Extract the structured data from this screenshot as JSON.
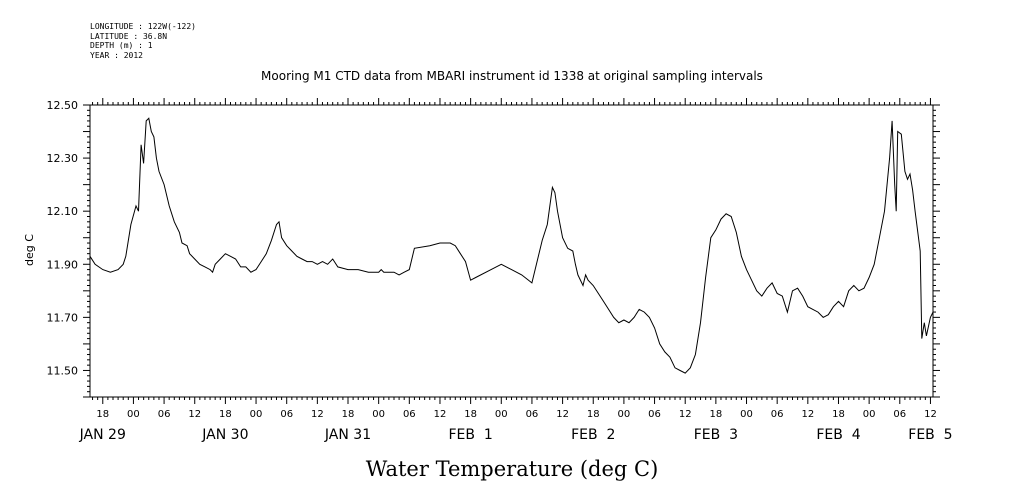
{
  "header": {
    "longitude": "LONGITUDE : 122W(-122)",
    "latitude": "LATITUDE : 36.8N",
    "depth": "DEPTH (m) : 1",
    "year": "YEAR : 2012"
  },
  "chart_data": {
    "type": "line",
    "title": "Mooring M1 CTD data from MBARI instrument id 1338 at original sampling intervals",
    "xlabel": "Water Temperature (deg C)",
    "ylabel": "deg C",
    "ylim": [
      11.4,
      12.5
    ],
    "y_ticks": [
      "11.50",
      "11.70",
      "11.90",
      "12.10",
      "12.30",
      "12.50"
    ],
    "x_unit": "hours since JAN 29 00:00 (2012)",
    "xlim": [
      -8.5,
      156.5
    ],
    "x_hour_ticks": [
      {
        "h": -6,
        "label": "18"
      },
      {
        "h": 0,
        "label": "00"
      },
      {
        "h": 6,
        "label": "06"
      },
      {
        "h": 12,
        "label": "12"
      },
      {
        "h": 18,
        "label": "18"
      },
      {
        "h": 24,
        "label": "00"
      },
      {
        "h": 30,
        "label": "06"
      },
      {
        "h": 36,
        "label": "12"
      },
      {
        "h": 42,
        "label": "18"
      },
      {
        "h": 48,
        "label": "00"
      },
      {
        "h": 54,
        "label": "06"
      },
      {
        "h": 60,
        "label": "12"
      },
      {
        "h": 66,
        "label": "18"
      },
      {
        "h": 72,
        "label": "00"
      },
      {
        "h": 78,
        "label": "06"
      },
      {
        "h": 84,
        "label": "12"
      },
      {
        "h": 90,
        "label": "18"
      },
      {
        "h": 96,
        "label": "00"
      },
      {
        "h": 102,
        "label": "06"
      },
      {
        "h": 108,
        "label": "12"
      },
      {
        "h": 114,
        "label": "18"
      },
      {
        "h": 120,
        "label": "00"
      },
      {
        "h": 126,
        "label": "06"
      },
      {
        "h": 132,
        "label": "12"
      },
      {
        "h": 138,
        "label": "18"
      },
      {
        "h": 144,
        "label": "00"
      },
      {
        "h": 150,
        "label": "06"
      },
      {
        "h": 156,
        "label": "12"
      }
    ],
    "x_day_labels": [
      {
        "h": -6,
        "label": "JAN 29"
      },
      {
        "h": 18,
        "label": "JAN 30"
      },
      {
        "h": 42,
        "label": "JAN 31"
      },
      {
        "h": 66,
        "label": "FEB  1"
      },
      {
        "h": 90,
        "label": "FEB  2"
      },
      {
        "h": 114,
        "label": "FEB  3"
      },
      {
        "h": 138,
        "label": "FEB  4"
      },
      {
        "h": 156,
        "label": "FEB  5"
      }
    ],
    "grid": false,
    "series": [
      {
        "color": "#000000",
        "points": [
          [
            -8.5,
            11.93
          ],
          [
            -7.5,
            11.9
          ],
          [
            -6,
            11.88
          ],
          [
            -4.5,
            11.87
          ],
          [
            -3,
            11.88
          ],
          [
            -2,
            11.9
          ],
          [
            -1.5,
            11.93
          ],
          [
            -0.5,
            12.05
          ],
          [
            0.5,
            12.12
          ],
          [
            1,
            12.1
          ],
          [
            1.5,
            12.35
          ],
          [
            2,
            12.28
          ],
          [
            2.5,
            12.44
          ],
          [
            3,
            12.45
          ],
          [
            3.5,
            12.4
          ],
          [
            4,
            12.38
          ],
          [
            4.5,
            12.3
          ],
          [
            5,
            12.25
          ],
          [
            6,
            12.2
          ],
          [
            7,
            12.12
          ],
          [
            8,
            12.06
          ],
          [
            9,
            12.02
          ],
          [
            9.5,
            11.98
          ],
          [
            10.5,
            11.97
          ],
          [
            11,
            11.94
          ],
          [
            12,
            11.92
          ],
          [
            13,
            11.9
          ],
          [
            14,
            11.89
          ],
          [
            15,
            11.88
          ],
          [
            15.5,
            11.87
          ],
          [
            16,
            11.9
          ],
          [
            17,
            11.92
          ],
          [
            18,
            11.94
          ],
          [
            19,
            11.93
          ],
          [
            20,
            11.92
          ],
          [
            21,
            11.89
          ],
          [
            22,
            11.89
          ],
          [
            23,
            11.87
          ],
          [
            24,
            11.88
          ],
          [
            25,
            11.91
          ],
          [
            26,
            11.94
          ],
          [
            27,
            11.99
          ],
          [
            28,
            12.05
          ],
          [
            28.5,
            12.06
          ],
          [
            29,
            12.0
          ],
          [
            30,
            11.97
          ],
          [
            31,
            11.95
          ],
          [
            32,
            11.93
          ],
          [
            33,
            11.92
          ],
          [
            34,
            11.91
          ],
          [
            35,
            11.91
          ],
          [
            36,
            11.9
          ],
          [
            37,
            11.91
          ],
          [
            38,
            11.9
          ],
          [
            39,
            11.92
          ],
          [
            40,
            11.89
          ],
          [
            42,
            11.88
          ],
          [
            44,
            11.88
          ],
          [
            46,
            11.87
          ],
          [
            48,
            11.87
          ],
          [
            48.5,
            11.88
          ],
          [
            49,
            11.87
          ],
          [
            51,
            11.87
          ],
          [
            52,
            11.86
          ],
          [
            53,
            11.87
          ],
          [
            54,
            11.88
          ],
          [
            55,
            11.96
          ],
          [
            58,
            11.97
          ],
          [
            60,
            11.98
          ],
          [
            62,
            11.98
          ],
          [
            63,
            11.97
          ],
          [
            64,
            11.94
          ],
          [
            65,
            11.91
          ],
          [
            66,
            11.84
          ],
          [
            67,
            11.85
          ],
          [
            70,
            11.88
          ],
          [
            72,
            11.9
          ],
          [
            74,
            11.88
          ],
          [
            76,
            11.86
          ],
          [
            78,
            11.83
          ],
          [
            80,
            11.99
          ],
          [
            81,
            12.05
          ],
          [
            82,
            12.19
          ],
          [
            82.5,
            12.17
          ],
          [
            83,
            12.1
          ],
          [
            84,
            12.0
          ],
          [
            85,
            11.96
          ],
          [
            86,
            11.95
          ],
          [
            86.5,
            11.9
          ],
          [
            87,
            11.86
          ],
          [
            88,
            11.82
          ],
          [
            88.5,
            11.86
          ],
          [
            89,
            11.84
          ],
          [
            90,
            11.82
          ],
          [
            91,
            11.79
          ],
          [
            92,
            11.76
          ],
          [
            93,
            11.73
          ],
          [
            94,
            11.7
          ],
          [
            95,
            11.68
          ],
          [
            96,
            11.69
          ],
          [
            97,
            11.68
          ],
          [
            98,
            11.7
          ],
          [
            99,
            11.73
          ],
          [
            100,
            11.72
          ],
          [
            101,
            11.7
          ],
          [
            102,
            11.66
          ],
          [
            103,
            11.6
          ],
          [
            104,
            11.57
          ],
          [
            105,
            11.55
          ],
          [
            106,
            11.51
          ],
          [
            107,
            11.5
          ],
          [
            108,
            11.49
          ],
          [
            109,
            11.51
          ],
          [
            110,
            11.56
          ],
          [
            111,
            11.68
          ],
          [
            112,
            11.85
          ],
          [
            113,
            12.0
          ],
          [
            114,
            12.03
          ],
          [
            115,
            12.07
          ],
          [
            116,
            12.09
          ],
          [
            117,
            12.08
          ],
          [
            118,
            12.02
          ],
          [
            119,
            11.93
          ],
          [
            120,
            11.88
          ],
          [
            121,
            11.84
          ],
          [
            122,
            11.8
          ],
          [
            123,
            11.78
          ],
          [
            124,
            11.81
          ],
          [
            125,
            11.83
          ],
          [
            126,
            11.79
          ],
          [
            127,
            11.78
          ],
          [
            128,
            11.72
          ],
          [
            129,
            11.8
          ],
          [
            130,
            11.81
          ],
          [
            131,
            11.78
          ],
          [
            132,
            11.74
          ],
          [
            133,
            11.73
          ],
          [
            134,
            11.72
          ],
          [
            135,
            11.7
          ],
          [
            136,
            11.71
          ],
          [
            137,
            11.74
          ],
          [
            138,
            11.76
          ],
          [
            139,
            11.74
          ],
          [
            140,
            11.8
          ],
          [
            141,
            11.82
          ],
          [
            142,
            11.8
          ],
          [
            143,
            11.81
          ],
          [
            144,
            11.85
          ],
          [
            145,
            11.9
          ],
          [
            146,
            12.0
          ],
          [
            147,
            12.1
          ],
          [
            148,
            12.3
          ],
          [
            148.5,
            12.44
          ],
          [
            149,
            12.2
          ],
          [
            149.3,
            12.1
          ],
          [
            149.6,
            12.4
          ],
          [
            150.3,
            12.39
          ],
          [
            151,
            12.25
          ],
          [
            151.5,
            12.22
          ],
          [
            152,
            12.24
          ],
          [
            152.5,
            12.18
          ],
          [
            153,
            12.1
          ],
          [
            154,
            11.95
          ],
          [
            154.3,
            11.62
          ],
          [
            154.8,
            11.68
          ],
          [
            155.2,
            11.63
          ],
          [
            156,
            11.7
          ],
          [
            156.5,
            11.72
          ]
        ]
      }
    ]
  }
}
